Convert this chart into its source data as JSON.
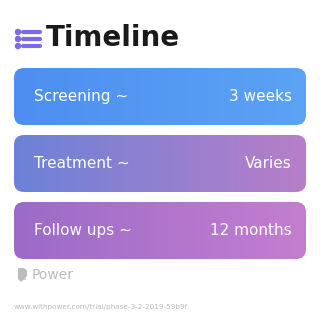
{
  "title": "Timeline",
  "title_fontsize": 20,
  "title_color": "#1a1a1a",
  "icon_color": "#7b68ee",
  "icon_line_color": "#7b68ee",
  "background_color": "#ffffff",
  "rows": [
    {
      "label": "Screening ~",
      "value": "3 weeks",
      "color_left": "#4d8ef0",
      "color_right": "#5ba3f5"
    },
    {
      "label": "Treatment ~",
      "value": "Varies",
      "color_left": "#6b82d8",
      "color_right": "#b87ec8"
    },
    {
      "label": "Follow ups ~",
      "value": "12 months",
      "color_left": "#9b6bc8",
      "color_right": "#c47ed0"
    }
  ],
  "row_text_color": "#ffffff",
  "row_label_fontsize": 11,
  "row_value_fontsize": 11,
  "watermark_text": "Power",
  "watermark_color": "#bbbbbb",
  "url_text": "www.withpower.com/trial/phase-3-2-2019-59b9f",
  "url_color": "#bbbbbb",
  "url_fontsize": 5.2
}
